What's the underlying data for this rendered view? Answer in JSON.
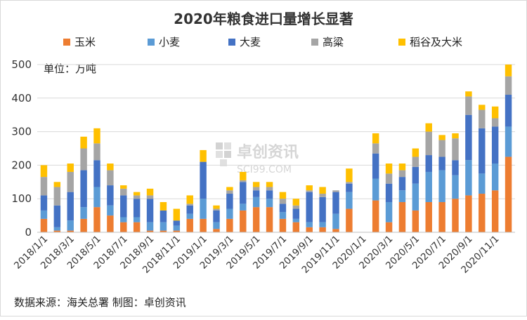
{
  "chart_data": {
    "type": "bar",
    "stacked": true,
    "title": "2020年粮食进口量增长显著",
    "unit_label": "单位：万吨",
    "source_note": "数据来源：海关总署  制图：卓创资讯",
    "watermark": {
      "brand": "卓创资讯",
      "site": "SCI99.COM"
    },
    "legend_position": "top",
    "grid": true,
    "ylim": [
      0,
      500
    ],
    "yticks": [
      0,
      100,
      200,
      300,
      400,
      500
    ],
    "x_tick_labels": [
      "2018/1/1",
      "2018/3/1",
      "2018/5/1",
      "2018/7/1",
      "2018/9/1",
      "2018/11/1",
      "2019/1/1",
      "2019/3/1",
      "2019/5/1",
      "2019/7/1",
      "2019/9/1",
      "2019/11/1",
      "2020/1/1",
      "2020/3/1",
      "2020/5/1",
      "2020/7/1",
      "2020/9/1",
      "2020/11/1"
    ],
    "categories": [
      "2018-01",
      "2018-02",
      "2018-03",
      "2018-04",
      "2018-05",
      "2018-06",
      "2018-07",
      "2018-08",
      "2018-09",
      "2018-10",
      "2018-11",
      "2018-12",
      "2019-01",
      "2019-02",
      "2019-03",
      "2019-04",
      "2019-05",
      "2019-06",
      "2019-07",
      "2019-08",
      "2019-09",
      "2019-10",
      "2019-11",
      "2019-12",
      "2020-01",
      "2020-02",
      "2020-03",
      "2020-04",
      "2020-05",
      "2020-06",
      "2020-07",
      "2020-08",
      "2020-09",
      "2020-10",
      "2020-11",
      "2020-12"
    ],
    "series": [
      {
        "name": "玉米",
        "color": "#ED7D31",
        "values": [
          40,
          5,
          5,
          40,
          75,
          50,
          30,
          30,
          5,
          5,
          5,
          40,
          40,
          10,
          40,
          65,
          75,
          75,
          40,
          30,
          15,
          15,
          10,
          70,
          null,
          95,
          30,
          90,
          65,
          90,
          90,
          100,
          110,
          115,
          125,
          225
        ]
      },
      {
        "name": "小麦",
        "color": "#5B9BD5",
        "values": [
          25,
          10,
          30,
          35,
          60,
          30,
          15,
          15,
          25,
          25,
          15,
          15,
          60,
          20,
          30,
          20,
          30,
          25,
          20,
          10,
          15,
          15,
          45,
          50,
          null,
          65,
          60,
          35,
          80,
          90,
          95,
          70,
          105,
          60,
          80,
          90
        ]
      },
      {
        "name": "大麦",
        "color": "#4472C4",
        "values": [
          45,
          65,
          85,
          110,
          80,
          60,
          65,
          55,
          70,
          35,
          15,
          25,
          110,
          35,
          45,
          65,
          20,
          25,
          25,
          30,
          90,
          75,
          65,
          25,
          null,
          75,
          55,
          40,
          50,
          50,
          40,
          45,
          135,
          135,
          110,
          95
        ]
      },
      {
        "name": "高粱",
        "color": "#A5A5A5",
        "values": [
          55,
          55,
          60,
          65,
          50,
          45,
          20,
          10,
          10,
          0,
          0,
          5,
          0,
          5,
          10,
          5,
          10,
          10,
          15,
          10,
          5,
          10,
          5,
          5,
          null,
          30,
          30,
          20,
          30,
          70,
          50,
          65,
          55,
          55,
          25,
          55
        ]
      },
      {
        "name": "稻谷及大米",
        "color": "#FFC000",
        "values": [
          35,
          15,
          25,
          35,
          45,
          20,
          10,
          10,
          20,
          25,
          35,
          25,
          35,
          10,
          10,
          25,
          15,
          15,
          20,
          20,
          15,
          20,
          0,
          40,
          null,
          30,
          30,
          20,
          25,
          25,
          15,
          15,
          15,
          15,
          35,
          35
        ]
      }
    ]
  }
}
